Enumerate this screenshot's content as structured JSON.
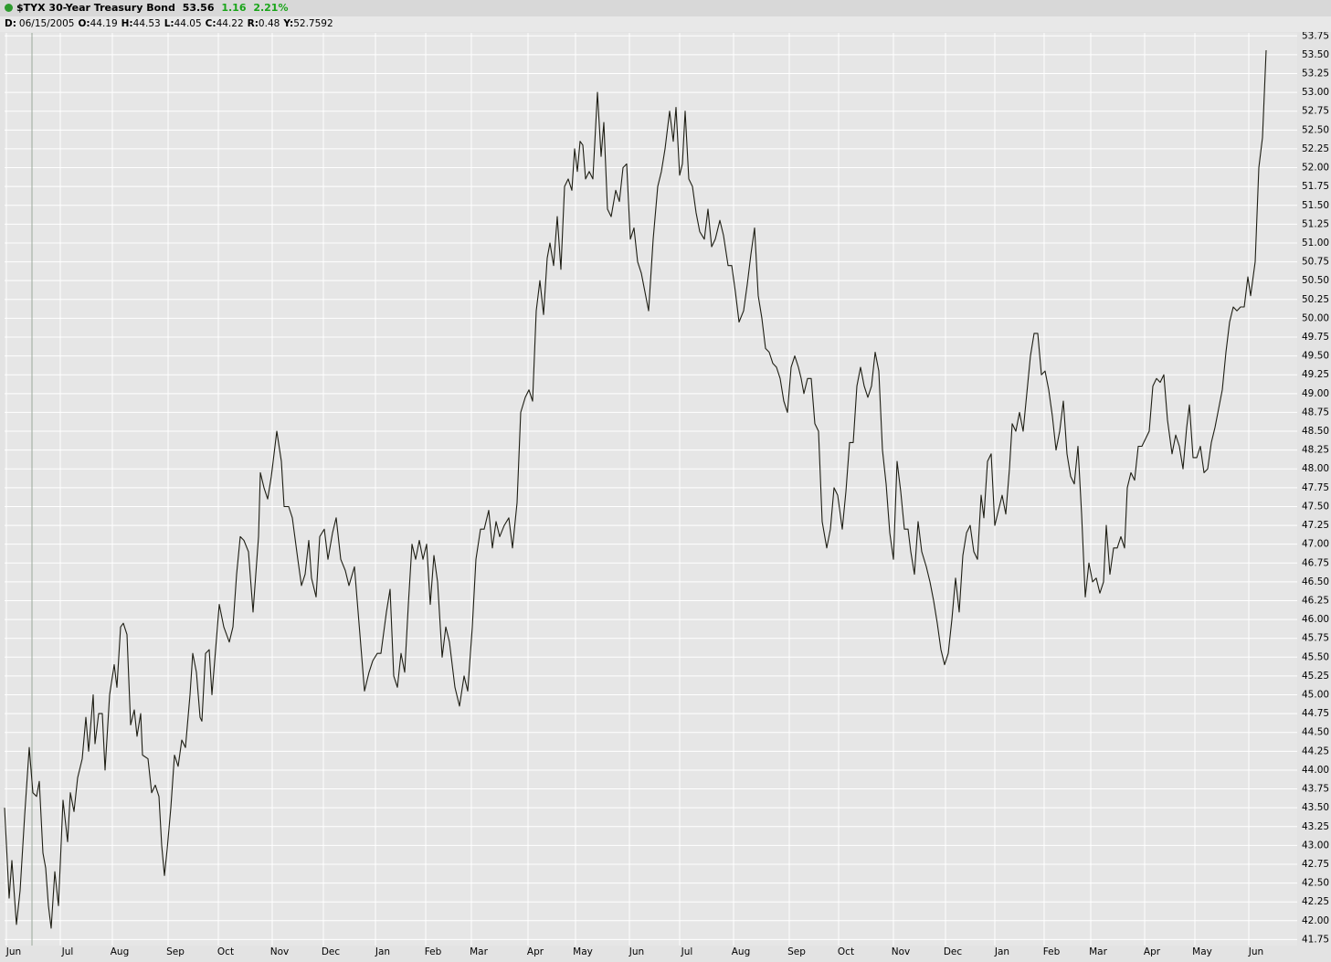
{
  "header": {
    "symbol": "$TYX 30-Year Treasury Bond",
    "last": "53.56",
    "change": "1.16",
    "change_pct": "2.21%",
    "info": [
      {
        "label": "D:",
        "value": "06/15/2005"
      },
      {
        "label": "O:",
        "value": "44.19"
      },
      {
        "label": "H:",
        "value": "44.53"
      },
      {
        "label": "L:",
        "value": "44.05"
      },
      {
        "label": "C:",
        "value": "44.22"
      },
      {
        "label": "R:",
        "value": "0.48"
      },
      {
        "label": "Y:",
        "value": "52.7592"
      }
    ]
  },
  "chart_data": {
    "type": "line",
    "color": "#1e1e14",
    "grid": true,
    "x": [
      5,
      10,
      13,
      18,
      22,
      27,
      32,
      36,
      40,
      43,
      47,
      50,
      53,
      56,
      60,
      64,
      69,
      74,
      77,
      81,
      85,
      90,
      94,
      97,
      102,
      104,
      108,
      112,
      115,
      120,
      125,
      128,
      132,
      135,
      139,
      143,
      147,
      150,
      154,
      156,
      162,
      166,
      170,
      174,
      177,
      180,
      183,
      187,
      191,
      195,
      199,
      203,
      208,
      211,
      215,
      219,
      221,
      225,
      229,
      232,
      236,
      240,
      245,
      251,
      255,
      259,
      263,
      267,
      272,
      277,
      283,
      285,
      289,
      293,
      297,
      303,
      308,
      311,
      316,
      320,
      326,
      330,
      334,
      338,
      341,
      346,
      350,
      355,
      359,
      364,
      368,
      373,
      378,
      382,
      388,
      391,
      395,
      399,
      404,
      408,
      413,
      417,
      423,
      427,
      431,
      435,
      439,
      443,
      447,
      451,
      455,
      459,
      463,
      467,
      471,
      475,
      479,
      484,
      488,
      492,
      498,
      503,
      508,
      512,
      517,
      521,
      526,
      530,
      535,
      539,
      543,
      547,
      552,
      557,
      561,
      566,
      570,
      575,
      579,
      583,
      587,
      591,
      595,
      599,
      602,
      606,
      610,
      614,
      618,
      622,
      626,
      629,
      632,
      635,
      638,
      641,
      645,
      649,
      654,
      658,
      661,
      665,
      669,
      674,
      678,
      682,
      686,
      690,
      694,
      698,
      702,
      706,
      710,
      715,
      720,
      724,
      728,
      733,
      737,
      740,
      744,
      747,
      750,
      754,
      758,
      762,
      766,
      771,
      775,
      779,
      783,
      788,
      792,
      797,
      801,
      805,
      809,
      814,
      818,
      822,
      826,
      830,
      834,
      838,
      842,
      846,
      850,
      854,
      858,
      862,
      866,
      870,
      874,
      877,
      880,
      884,
      888,
      892,
      896,
      900,
      905,
      909,
      913,
      917,
      922,
      926,
      930,
      934,
      938,
      942,
      946,
      950,
      954,
      958,
      962,
      966,
      970,
      974,
      978,
      982,
      986,
      990,
      994,
      997,
      1001,
      1005,
      1009,
      1014,
      1018,
      1022,
      1026,
      1030,
      1034,
      1038,
      1042,
      1046,
      1050,
      1054,
      1058,
      1062,
      1066,
      1070,
      1074,
      1077,
      1081,
      1085,
      1089,
      1093,
      1097,
      1101,
      1105,
      1108,
      1112,
      1116,
      1120,
      1124,
      1128,
      1132,
      1136,
      1140,
      1144,
      1148,
      1152,
      1156,
      1160,
      1164,
      1168,
      1172,
      1176,
      1180,
      1184,
      1188,
      1192,
      1196,
      1200,
      1204,
      1208,
      1211,
      1215,
      1219,
      1223,
      1227,
      1231,
      1234,
      1238,
      1242,
      1246,
      1250,
      1254,
      1258,
      1262,
      1266,
      1270,
      1274,
      1278,
      1283,
      1287,
      1291,
      1295,
      1299,
      1302,
      1306,
      1310,
      1314,
      1318,
      1322,
      1326,
      1330,
      1334,
      1338,
      1342,
      1346,
      1350,
      1354,
      1358,
      1362,
      1366,
      1369,
      1374,
      1378,
      1382,
      1386
    ],
    "values": [
      43.5,
      42.3,
      42.8,
      41.95,
      42.4,
      43.4,
      44.3,
      43.7,
      43.65,
      43.85,
      42.9,
      42.7,
      42.2,
      41.9,
      42.65,
      42.2,
      43.6,
      43.05,
      43.7,
      43.45,
      43.9,
      44.15,
      44.7,
      44.25,
      45.0,
      44.35,
      44.75,
      44.75,
      44.0,
      45.0,
      45.4,
      45.1,
      45.9,
      45.95,
      45.8,
      44.6,
      44.8,
      44.45,
      44.75,
      44.2,
      44.15,
      43.7,
      43.8,
      43.65,
      43.0,
      42.6,
      42.95,
      43.5,
      44.2,
      44.05,
      44.4,
      44.3,
      45.0,
      45.55,
      45.3,
      44.7,
      44.65,
      45.55,
      45.6,
      45.0,
      45.6,
      46.2,
      45.9,
      45.7,
      45.9,
      46.6,
      47.1,
      47.05,
      46.9,
      46.1,
      47.1,
      47.95,
      47.75,
      47.6,
      47.9,
      48.5,
      48.1,
      47.5,
      47.5,
      47.35,
      46.8,
      46.45,
      46.6,
      47.05,
      46.55,
      46.3,
      47.1,
      47.2,
      46.8,
      47.15,
      47.35,
      46.8,
      46.65,
      46.45,
      46.7,
      46.25,
      45.65,
      45.05,
      45.3,
      45.45,
      45.55,
      45.55,
      46.1,
      46.4,
      45.25,
      45.1,
      45.55,
      45.3,
      46.2,
      47.0,
      46.8,
      47.05,
      46.8,
      47.0,
      46.2,
      46.85,
      46.5,
      45.5,
      45.9,
      45.7,
      45.1,
      44.85,
      45.25,
      45.05,
      45.9,
      46.8,
      47.2,
      47.2,
      47.45,
      46.95,
      47.3,
      47.1,
      47.25,
      47.35,
      46.95,
      47.55,
      48.75,
      48.95,
      49.05,
      48.9,
      50.1,
      50.5,
      50.05,
      50.8,
      51.0,
      50.7,
      51.35,
      50.65,
      51.75,
      51.85,
      51.7,
      52.25,
      51.95,
      52.35,
      52.3,
      51.85,
      51.95,
      51.85,
      53.0,
      52.15,
      52.6,
      51.45,
      51.35,
      51.7,
      51.55,
      52.0,
      52.05,
      51.05,
      51.2,
      50.75,
      50.6,
      50.35,
      50.1,
      51.05,
      51.75,
      51.95,
      52.25,
      52.75,
      52.35,
      52.8,
      51.9,
      52.05,
      52.75,
      51.85,
      51.75,
      51.4,
      51.15,
      51.05,
      51.45,
      50.95,
      51.05,
      51.3,
      51.1,
      50.7,
      50.7,
      50.35,
      49.95,
      50.1,
      50.45,
      50.85,
      51.2,
      50.3,
      50.0,
      49.6,
      49.55,
      49.4,
      49.35,
      49.2,
      48.9,
      48.75,
      49.35,
      49.5,
      49.35,
      49.2,
      49.0,
      49.2,
      49.2,
      48.6,
      48.5,
      47.3,
      46.95,
      47.2,
      47.75,
      47.65,
      47.2,
      47.7,
      48.35,
      48.35,
      49.1,
      49.35,
      49.1,
      48.95,
      49.1,
      49.55,
      49.3,
      48.25,
      47.8,
      47.15,
      46.8,
      48.1,
      47.7,
      47.2,
      47.2,
      46.9,
      46.6,
      47.3,
      46.9,
      46.7,
      46.5,
      46.25,
      45.95,
      45.6,
      45.4,
      45.55,
      46.0,
      46.55,
      46.1,
      46.85,
      47.15,
      47.25,
      46.9,
      46.8,
      47.65,
      47.35,
      48.1,
      48.2,
      47.25,
      47.45,
      47.65,
      47.4,
      48.0,
      48.6,
      48.5,
      48.75,
      48.5,
      49.0,
      49.5,
      49.8,
      49.8,
      49.25,
      49.3,
      49.05,
      48.7,
      48.25,
      48.5,
      48.9,
      48.2,
      47.9,
      47.8,
      48.3,
      47.4,
      46.3,
      46.75,
      46.5,
      46.55,
      46.35,
      46.5,
      47.25,
      46.6,
      46.95,
      46.95,
      47.1,
      46.95,
      47.75,
      47.95,
      47.85,
      48.3,
      48.3,
      48.4,
      48.5,
      49.1,
      49.2,
      49.15,
      49.25,
      48.65,
      48.2,
      48.45,
      48.3,
      48.0,
      48.55,
      48.85,
      48.15,
      48.15,
      48.3,
      47.95,
      48.0,
      48.35,
      48.55,
      48.8,
      49.05,
      49.55,
      49.95,
      50.15,
      50.1,
      50.15,
      50.15,
      50.55,
      50.3,
      50.75,
      52.0,
      52.4,
      53.56
    ],
    "xlim": [
      0,
      1420
    ],
    "xticks": [
      {
        "value": 7,
        "label": "Jun"
      },
      {
        "value": 66,
        "label": "Jul"
      },
      {
        "value": 123,
        "label": "Aug"
      },
      {
        "value": 184,
        "label": "Sep"
      },
      {
        "value": 239,
        "label": "Oct"
      },
      {
        "value": 298,
        "label": "Nov"
      },
      {
        "value": 354,
        "label": "Dec"
      },
      {
        "value": 411,
        "label": "Jan"
      },
      {
        "value": 466,
        "label": "Feb"
      },
      {
        "value": 516,
        "label": "Mar"
      },
      {
        "value": 578,
        "label": "Apr"
      },
      {
        "value": 630,
        "label": "May"
      },
      {
        "value": 689,
        "label": "Jun"
      },
      {
        "value": 744,
        "label": "Jul"
      },
      {
        "value": 803,
        "label": "Aug"
      },
      {
        "value": 864,
        "label": "Sep"
      },
      {
        "value": 918,
        "label": "Oct"
      },
      {
        "value": 978,
        "label": "Nov"
      },
      {
        "value": 1035,
        "label": "Dec"
      },
      {
        "value": 1089,
        "label": "Jan"
      },
      {
        "value": 1143,
        "label": "Feb"
      },
      {
        "value": 1194,
        "label": "Mar"
      },
      {
        "value": 1253,
        "label": "Apr"
      },
      {
        "value": 1308,
        "label": "May"
      },
      {
        "value": 1367,
        "label": "Jun"
      }
    ],
    "ylim": [
      41.67,
      53.79
    ],
    "yticks": [
      41.75,
      {
        "value": 42,
        "label": "42.00"
      },
      42.25,
      {
        "value": 42.5,
        "label": "42.50"
      },
      42.75,
      {
        "value": 43,
        "label": "43.00"
      },
      43.25,
      {
        "value": 43.5,
        "label": "43.50"
      },
      43.75,
      {
        "value": 44,
        "label": "44.00"
      },
      44.25,
      {
        "value": 44.5,
        "label": "44.50"
      },
      44.75,
      {
        "value": 45,
        "label": "45.00"
      },
      45.25,
      {
        "value": 45.5,
        "label": "45.50"
      },
      45.75,
      {
        "value": 46,
        "label": "46.00"
      },
      46.25,
      {
        "value": 46.5,
        "label": "46.50"
      },
      46.75,
      {
        "value": 47,
        "label": "47.00"
      },
      47.25,
      {
        "value": 47.5,
        "label": "47.50"
      },
      47.75,
      {
        "value": 48,
        "label": "48.00"
      },
      48.25,
      {
        "value": 48.5,
        "label": "48.50"
      },
      48.75,
      {
        "value": 49,
        "label": "49.00"
      },
      49.25,
      {
        "value": 49.5,
        "label": "49.50"
      },
      49.75,
      {
        "value": 50,
        "label": "50.00"
      },
      50.25,
      {
        "value": 50.5,
        "label": "50.50"
      },
      50.75,
      {
        "value": 51,
        "label": "51.00"
      },
      51.25,
      {
        "value": 51.5,
        "label": "51.50"
      },
      51.75,
      {
        "value": 52,
        "label": "52.00"
      },
      52.25,
      {
        "value": 52.5,
        "label": "52.50"
      },
      52.75,
      {
        "value": 53,
        "label": "53.00"
      },
      53.25,
      {
        "value": 53.5,
        "label": "53.50"
      },
      53.75
    ]
  }
}
